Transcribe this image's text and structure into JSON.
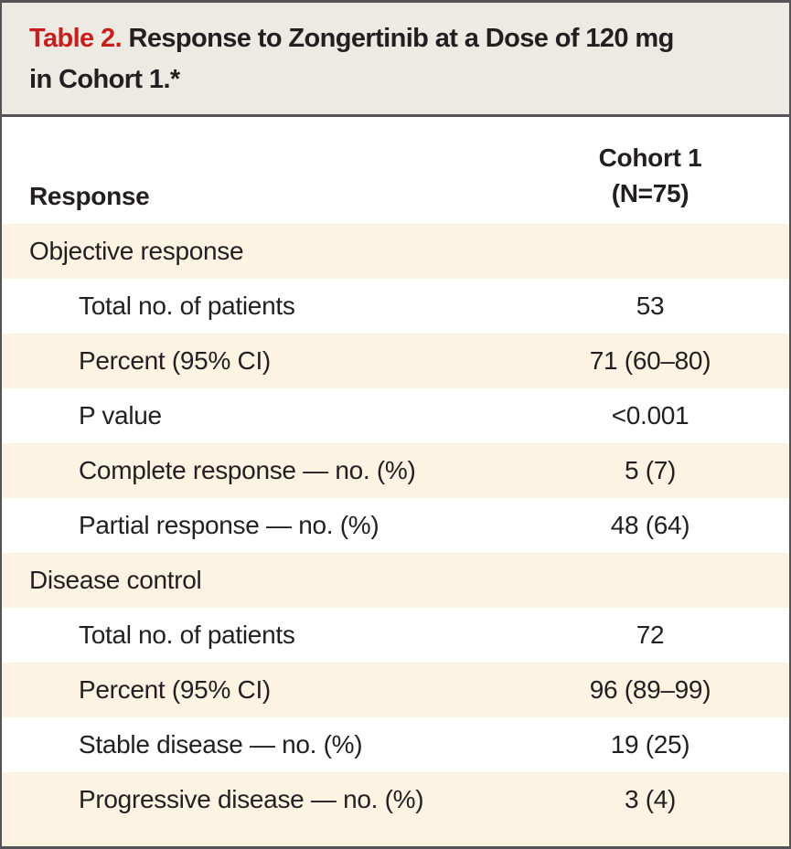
{
  "title": {
    "label": "Table 2.",
    "line1": "Response to Zongertinib at a Dose of 120 mg",
    "line2": "in Cohort 1.*"
  },
  "header": {
    "response": "Response",
    "cohort_line1": "Cohort 1",
    "cohort_line2": "(N=75)"
  },
  "rows": [
    {
      "label": "Objective response",
      "value": "",
      "indent": false
    },
    {
      "label": "Total no. of patients",
      "value": "53",
      "indent": true
    },
    {
      "label": "Percent (95% CI)",
      "value": "71 (60–80)",
      "indent": true
    },
    {
      "label": "P value",
      "value": "<0.001",
      "indent": true
    },
    {
      "label": "Complete response — no. (%)",
      "value": "5 (7)",
      "indent": true
    },
    {
      "label": "Partial response — no. (%)",
      "value": "48 (64)",
      "indent": true
    },
    {
      "label": "Disease control",
      "value": "",
      "indent": false
    },
    {
      "label": "Total no. of patients",
      "value": "72",
      "indent": true
    },
    {
      "label": "Percent (95% CI)",
      "value": "96 (89–99)",
      "indent": true
    },
    {
      "label": "Stable disease — no. (%)",
      "value": "19 (25)",
      "indent": true
    },
    {
      "label": "Progressive disease — no. (%)",
      "value": "3 (4)",
      "indent": true
    }
  ],
  "colors": {
    "accent_red": "#c6201e",
    "row_cream": "#fcf3e3",
    "title_bg": "#edeae4",
    "border": "#545457",
    "text": "#231f20"
  }
}
